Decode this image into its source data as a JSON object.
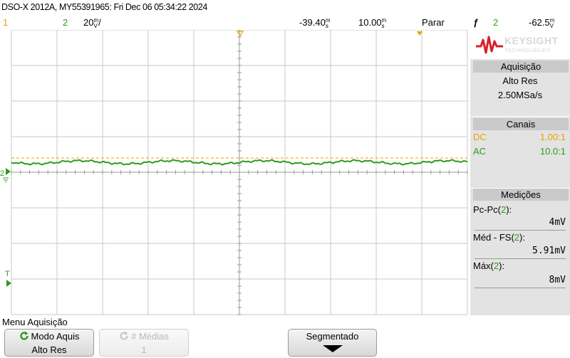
{
  "title": "DSO-X 2012A, MY55391965: Fri Dec 06 05:34:22 2024",
  "status": {
    "ch1_label": "1",
    "ch2_label": "2",
    "ch2_scale": "20",
    "ch2_scale_unit_top": "m",
    "ch2_scale_unit_bottom": "V",
    "slash": "/",
    "h_position": "-39.40",
    "h_position_unit_top": "m",
    "h_position_unit_bottom": "s",
    "h_scale": "10.00",
    "h_scale_unit_top": "m",
    "h_scale_unit_bottom": "s",
    "run_state": "Parar",
    "trigger_symbol": "ƒ",
    "trigger_source": "2",
    "trigger_level": "-62.5",
    "trigger_level_unit_top": "m",
    "trigger_level_unit_bottom": "V"
  },
  "colors": {
    "ch1": "#e8a000",
    "ch2": "#2e9b1a",
    "grid": "#c8c8c8",
    "marker": "#e8a000"
  },
  "logo": {
    "name": "KEYSIGHT",
    "sub": "TECHNOLOGIES"
  },
  "acquisition": {
    "header": "Aquisição",
    "mode": "Alto Res",
    "rate": "2.50MSa/s"
  },
  "channels": {
    "header": "Canais",
    "ch1_coupling": "DC",
    "ch1_probe": "1.00:1",
    "ch2_coupling": "AC",
    "ch2_probe": "10.0:1"
  },
  "measurements": {
    "header": "Medições",
    "m1_label_a": "Pc-Pc(",
    "m1_label_b": "2",
    "m1_label_c": "):",
    "m1_value": "4mV",
    "m2_label_a": "Méd - FS(",
    "m2_label_b": "2",
    "m2_label_c": "):",
    "m2_value": "5.91mV",
    "m3_label_a": "Máx(",
    "m3_label_b": "2",
    "m3_label_c": "):",
    "m3_value": "8mV"
  },
  "markers": {
    "ch2_ground": "2",
    "trigger": "T"
  },
  "menu": {
    "title": "Menu Aquisição",
    "key1_line1": "Modo Aquis",
    "key1_line2": "Alto Res",
    "key2_line1": "# Médias",
    "key2_line2": "1",
    "key3_line1": "Segmentado"
  }
}
